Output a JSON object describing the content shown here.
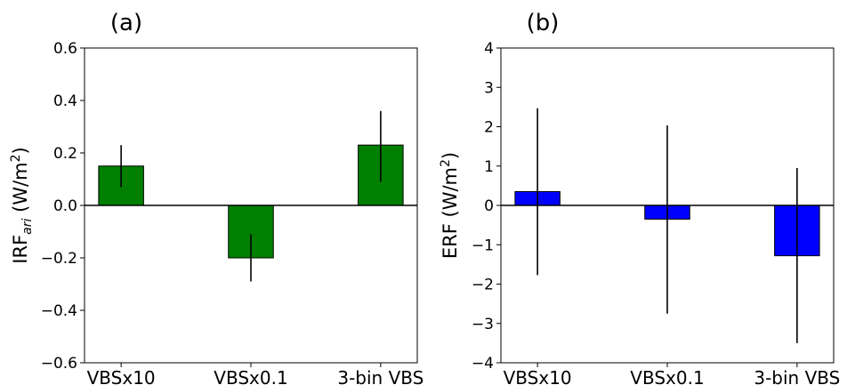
{
  "chart_data": [
    {
      "type": "bar",
      "panel_label": "(a)",
      "categories": [
        "VBSx10",
        "VBSx0.1",
        "3-bin VBS"
      ],
      "values": [
        0.15,
        -0.2,
        0.23
      ],
      "error_low": [
        0.07,
        -0.29,
        0.09
      ],
      "error_high": [
        0.23,
        -0.11,
        0.36
      ],
      "bar_color": "#007f00",
      "ylabel_main": "IRF",
      "ylabel_sub": "ari",
      "ylabel_unit_open": " (W/m",
      "ylabel_unit_sup": "2",
      "ylabel_unit_close": ")",
      "ylim": [
        -0.6,
        0.6
      ],
      "yticks": [
        -0.6,
        -0.4,
        -0.2,
        0.0,
        0.2,
        0.4,
        0.6
      ],
      "ytick_labels": [
        "−0.6",
        "−0.4",
        "−0.2",
        "0.0",
        "0.2",
        "0.4",
        "0.6"
      ],
      "zero_line": true,
      "grid": false
    },
    {
      "type": "bar",
      "panel_label": "(b)",
      "categories": [
        "VBSx10",
        "VBSx0.1",
        "3-bin VBS"
      ],
      "values": [
        0.35,
        -0.35,
        -1.28
      ],
      "error_low": [
        -1.77,
        -2.75,
        -3.5
      ],
      "error_high": [
        2.47,
        2.03,
        0.95
      ],
      "bar_color": "#0000ff",
      "ylabel_main": "ERF",
      "ylabel_sub": "",
      "ylabel_unit_open": " (W/m",
      "ylabel_unit_sup": "2",
      "ylabel_unit_close": ")",
      "ylim": [
        -4,
        4
      ],
      "yticks": [
        -4,
        -3,
        -2,
        -1,
        0,
        1,
        2,
        3,
        4
      ],
      "ytick_labels": [
        "−4",
        "−3",
        "−2",
        "−1",
        "0",
        "1",
        "2",
        "3",
        "4"
      ],
      "zero_line": true,
      "grid": false
    }
  ]
}
